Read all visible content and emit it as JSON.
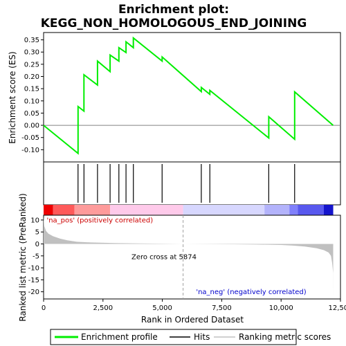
{
  "chart_data": {
    "type": "line",
    "title": "Enrichment plot:\nKEGG_NON_HOMOLOGOUS_END_JOINING",
    "title_lines": [
      "Enrichment plot:",
      "KEGG_NON_HOMOLOGOUS_END_JOINING"
    ],
    "es_panel": {
      "ylabel": "Enrichment score (ES)",
      "ylim": [
        -0.15,
        0.38
      ],
      "yticks": [
        -0.1,
        -0.05,
        0.0,
        0.05,
        0.1,
        0.15,
        0.2,
        0.25,
        0.3,
        0.35
      ],
      "ytick_labels": [
        "-0.10",
        "-0.05",
        "0.00",
        "0.05",
        "0.10",
        "0.15",
        "0.20",
        "0.25",
        "0.30",
        "0.35"
      ],
      "series": [
        {
          "name": "Enrichment profile",
          "color": "#00ee00",
          "x": [
            0,
            1450,
            1450,
            1700,
            1700,
            2270,
            2270,
            2800,
            2800,
            3170,
            3170,
            3470,
            3470,
            3780,
            3780,
            4990,
            4990,
            6640,
            6640,
            7000,
            7000,
            9480,
            9480,
            10570,
            10570,
            12190
          ],
          "y": [
            0.0,
            -0.115,
            0.077,
            0.058,
            0.207,
            0.165,
            0.263,
            0.22,
            0.288,
            0.263,
            0.318,
            0.298,
            0.342,
            0.318,
            0.358,
            0.263,
            0.28,
            0.138,
            0.155,
            0.127,
            0.143,
            -0.052,
            0.035,
            -0.057,
            0.137,
            0.0
          ]
        }
      ]
    },
    "hits": {
      "name": "Hits",
      "positions": [
        1450,
        1700,
        2270,
        2800,
        3170,
        3470,
        3780,
        4990,
        6640,
        7000,
        9480,
        10570
      ]
    },
    "rank_panel": {
      "ylabel": "Ranked list metric (PreRanked)",
      "xlabel": "Rank in Ordered Dataset",
      "ylim": [
        -23,
        12
      ],
      "yticks": [
        10,
        5,
        0,
        -5,
        -10,
        -15,
        -20
      ],
      "ytick_labels": [
        "10",
        "5",
        "0",
        "-5",
        "-10",
        "-15",
        "-20"
      ],
      "series": [
        {
          "name": "Ranking metric scores",
          "color": "#c0c0c0",
          "x": [
            0,
            30,
            100,
            200,
            400,
            700,
            1000,
            1400,
            2000,
            3000,
            4000,
            5000,
            5874,
            7000,
            8000,
            9000,
            10000,
            10500,
            11000,
            11500,
            11800,
            12000,
            12100,
            12150,
            12190,
            12195
          ],
          "y": [
            11.5,
            7.5,
            5.5,
            4.3,
            3.2,
            2.2,
            1.5,
            0.9,
            0.6,
            0.35,
            0.2,
            0.1,
            0.0,
            -0.08,
            -0.15,
            -0.25,
            -0.45,
            -0.7,
            -1.1,
            -1.8,
            -2.6,
            -3.6,
            -5.0,
            -8.0,
            -12.0,
            -22.5
          ]
        }
      ],
      "annotations": [
        {
          "text": "'na_pos' (positively correlated)",
          "color": "#cc0000",
          "x": 130,
          "y": 9.0
        },
        {
          "text": "Zero cross at 5874",
          "color": "#000000",
          "x": 3700,
          "y": -6.3
        },
        {
          "text": "'na_neg' (negatively correlated)",
          "color": "#0000cc",
          "x": 6420,
          "y": -21.0
        }
      ],
      "zero_cross": 5874
    },
    "xlim": [
      0,
      12500
    ],
    "xticks": [
      0,
      2500,
      5000,
      7500,
      10000,
      12500
    ],
    "xtick_labels": [
      "0",
      "2,500",
      "5,000",
      "7,500",
      "10,000",
      "12,500"
    ],
    "colorbar_segments": [
      {
        "from": 0,
        "to": 400,
        "color": "#ee0000"
      },
      {
        "from": 400,
        "to": 1300,
        "color": "#fe5a5a"
      },
      {
        "from": 1300,
        "to": 2800,
        "color": "#fe9b9b"
      },
      {
        "from": 2800,
        "to": 5874,
        "color": "#fecaea"
      },
      {
        "from": 5874,
        "to": 9300,
        "color": "#d7d7fe"
      },
      {
        "from": 9300,
        "to": 10350,
        "color": "#b3b3fb"
      },
      {
        "from": 10350,
        "to": 10700,
        "color": "#8080fb"
      },
      {
        "from": 10700,
        "to": 11800,
        "color": "#5858ee"
      },
      {
        "from": 11800,
        "to": 12195,
        "color": "#1414cc"
      }
    ],
    "legend": {
      "position": "bottom",
      "items": [
        {
          "label": "Enrichment profile",
          "color": "#00ee00",
          "kind": "thick-line"
        },
        {
          "label": "Hits",
          "color": "#000000",
          "kind": "line"
        },
        {
          "label": "Ranking metric scores",
          "color": "#c0c0c0",
          "kind": "line"
        }
      ]
    }
  }
}
